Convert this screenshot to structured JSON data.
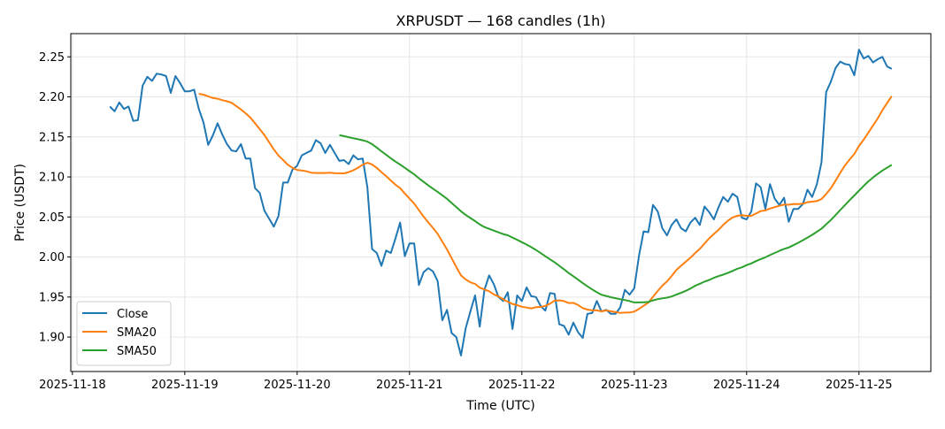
{
  "chart_data": {
    "type": "line",
    "title": "XRPUSDT — 168 candles (1h)",
    "xlabel": "Time (UTC)",
    "ylabel": "Price (USDT)",
    "x_unit": "hours since 2025-11-18 00:00 UTC",
    "first_candle_hour": 8,
    "xlim": [
      -0.35,
      183.35
    ],
    "ylim": [
      1.857,
      2.279
    ],
    "grid": true,
    "legend_position": "lower-left",
    "x_ticks": [
      {
        "hour": 0,
        "label": "2025-11-18"
      },
      {
        "hour": 24,
        "label": "2025-11-19"
      },
      {
        "hour": 48,
        "label": "2025-11-20"
      },
      {
        "hour": 72,
        "label": "2025-11-21"
      },
      {
        "hour": 96,
        "label": "2025-11-22"
      },
      {
        "hour": 120,
        "label": "2025-11-23"
      },
      {
        "hour": 144,
        "label": "2025-11-24"
      },
      {
        "hour": 168,
        "label": "2025-11-25"
      }
    ],
    "y_ticks": [
      "1.90",
      "1.95",
      "2.00",
      "2.05",
      "2.10",
      "2.15",
      "2.20",
      "2.25"
    ],
    "series": [
      {
        "name": "Close",
        "color": "#1f77b4",
        "values": [
          2.188,
          2.182,
          2.193,
          2.185,
          2.188,
          2.17,
          2.171,
          2.214,
          2.225,
          2.22,
          2.229,
          2.228,
          2.226,
          2.205,
          2.226,
          2.217,
          2.207,
          2.207,
          2.209,
          2.185,
          2.168,
          2.14,
          2.152,
          2.167,
          2.153,
          2.141,
          2.133,
          2.132,
          2.141,
          2.123,
          2.123,
          2.086,
          2.08,
          2.058,
          2.048,
          2.038,
          2.051,
          2.093,
          2.093,
          2.109,
          2.114,
          2.127,
          2.13,
          2.133,
          2.146,
          2.142,
          2.13,
          2.14,
          2.13,
          2.12,
          2.121,
          2.116,
          2.127,
          2.122,
          2.123,
          2.087,
          2.01,
          2.005,
          1.989,
          2.008,
          2.005,
          2.023,
          2.043,
          2.001,
          2.017,
          2.017,
          1.965,
          1.981,
          1.986,
          1.982,
          1.97,
          1.921,
          1.934,
          1.905,
          1.9,
          1.877,
          1.911,
          1.932,
          1.952,
          1.913,
          1.959,
          1.977,
          1.966,
          1.95,
          1.945,
          1.956,
          1.91,
          1.952,
          1.945,
          1.962,
          1.951,
          1.95,
          1.939,
          1.933,
          1.955,
          1.954,
          1.916,
          1.914,
          1.903,
          1.918,
          1.906,
          1.899,
          1.929,
          1.93,
          1.945,
          1.932,
          1.934,
          1.929,
          1.929,
          1.937,
          1.959,
          1.953,
          1.961,
          2.001,
          2.032,
          2.031,
          2.065,
          2.057,
          2.036,
          2.027,
          2.04,
          2.047,
          2.036,
          2.032,
          2.043,
          2.049,
          2.04,
          2.063,
          2.056,
          2.047,
          2.062,
          2.075,
          2.069,
          2.079,
          2.075,
          2.049,
          2.047,
          2.057,
          2.092,
          2.087,
          2.06,
          2.091,
          2.073,
          2.065,
          2.074,
          2.044,
          2.06,
          2.06,
          2.066,
          2.084,
          2.075,
          2.091,
          2.118,
          2.206,
          2.219,
          2.236,
          2.244,
          2.241,
          2.24,
          2.227,
          2.259,
          2.248,
          2.251,
          2.243,
          2.247,
          2.25,
          2.238,
          2.235
        ]
      },
      {
        "name": "SMA20",
        "color": "#ff7f0e",
        "window": 20
      },
      {
        "name": "SMA50",
        "color": "#2ca02c",
        "window": 50
      }
    ]
  }
}
